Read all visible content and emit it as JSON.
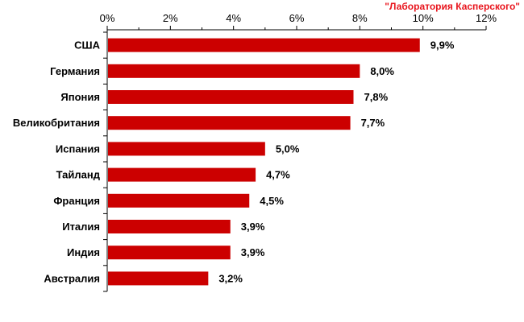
{
  "brand": {
    "watermark": "\"Лаборатория Касперского\"",
    "color": "#e8141c"
  },
  "chart_data": {
    "type": "bar",
    "orientation": "horizontal",
    "title": "",
    "xlabel": "",
    "ylabel": "",
    "xlim": [
      0,
      12
    ],
    "x_ticks": [
      0,
      2,
      4,
      6,
      8,
      10,
      12
    ],
    "x_tick_labels": [
      "0%",
      "2%",
      "4%",
      "6%",
      "8%",
      "10%",
      "12%"
    ],
    "x_axis_position": "top",
    "grid": false,
    "legend": "none",
    "bar_color": "#cc0000",
    "categories": [
      "США",
      "Германия",
      "Япония",
      "Великобритания",
      "Испания",
      "Тайланд",
      "Франция",
      "Италия",
      "Индия",
      "Австралия"
    ],
    "values": [
      9.9,
      8.0,
      7.8,
      7.7,
      5.0,
      4.7,
      4.5,
      3.9,
      3.9,
      3.2
    ],
    "value_labels": [
      "9,9%",
      "8,0%",
      "7,8%",
      "7,7%",
      "5,0%",
      "4,7%",
      "4,5%",
      "3,9%",
      "3,9%",
      "3,2%"
    ]
  }
}
